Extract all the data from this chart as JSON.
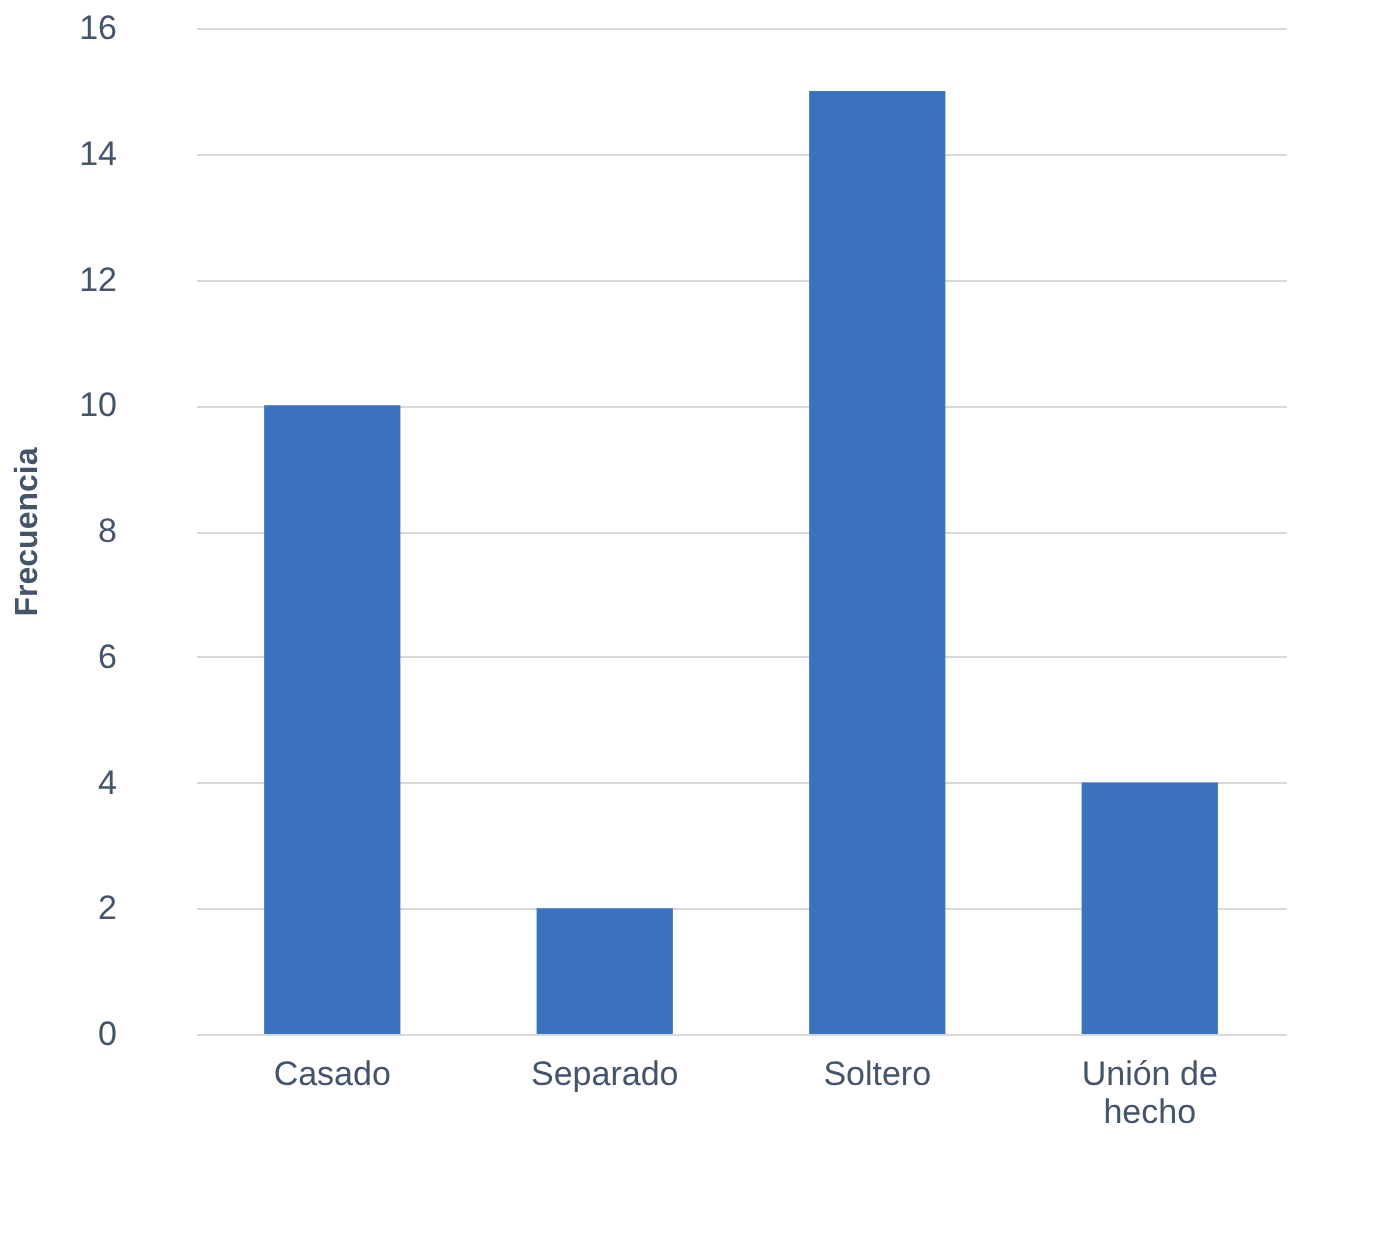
{
  "chart_data": {
    "type": "bar",
    "ylabel": "Frecuencia",
    "categories": [
      "Casado",
      "Separado",
      "Soltero",
      "Unión de hecho"
    ],
    "values": [
      10,
      2,
      15,
      4
    ],
    "color": "#3a72c0",
    "ylim": [
      0,
      16
    ],
    "yticks": [
      0,
      2,
      4,
      6,
      8,
      10,
      12,
      14,
      16
    ],
    "grid": "y"
  }
}
